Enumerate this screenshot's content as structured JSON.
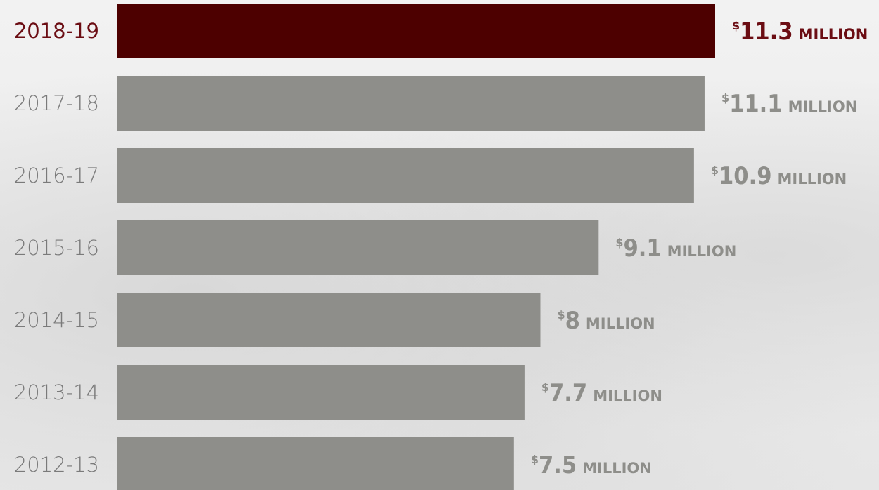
{
  "chart_data": {
    "type": "bar",
    "orientation": "horizontal",
    "categories": [
      "2018-19",
      "2017-18",
      "2016-17",
      "2015-16",
      "2014-15",
      "2013-14",
      "2012-13"
    ],
    "values": [
      11.3,
      11.1,
      10.9,
      9.1,
      8,
      7.7,
      7.5
    ],
    "value_labels": [
      "11.3",
      "11.1",
      "10.9",
      "9.1",
      "8",
      "7.7",
      "7.5"
    ],
    "currency_symbol": "$",
    "unit_label": "MILLION",
    "highlight_index": 0
  },
  "colors": {
    "highlight_bar": "#4d0000",
    "highlight_text": "#6b0d13",
    "bar": "#8e8e8a",
    "year_text": "#7a7a7a",
    "value_text": "#8e8e8a"
  }
}
